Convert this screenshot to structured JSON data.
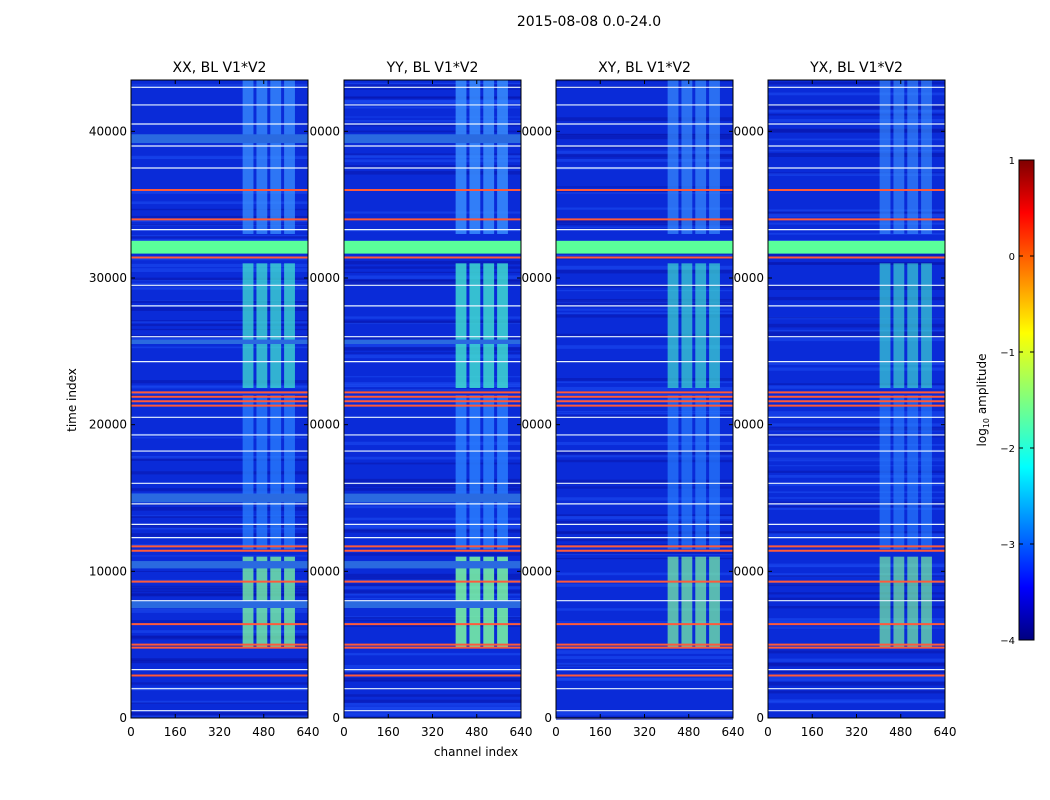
{
  "figure": {
    "suptitle": "2015-08-08 0.0-24.0",
    "xlabel": "channel index",
    "ylabel": "time index"
  },
  "chart_data": {
    "type": "heatmap",
    "x_range": [
      0,
      640
    ],
    "y_range": [
      0,
      43500
    ],
    "x_ticks": [
      0,
      160,
      320,
      480,
      640
    ],
    "y_ticks": [
      0,
      10000,
      20000,
      30000,
      40000
    ],
    "x_tick_labels": [
      "0",
      "160",
      "320",
      "480",
      "640"
    ],
    "y_tick_labels": [
      "0",
      "10000",
      "20000",
      "30000",
      "40000"
    ],
    "y_tick_labels_clipped": [
      "0",
      "0000",
      "0000",
      "0000",
      "0000"
    ],
    "panels": [
      {
        "title": "XX, BL V1*V2",
        "bright_band": [
          400,
          600
        ],
        "band_strength": 1.0
      },
      {
        "title": "YY, BL V1*V2",
        "bright_band": [
          400,
          600
        ],
        "band_strength": 1.1
      },
      {
        "title": "XY, BL V1*V2",
        "bright_band": [
          400,
          600
        ],
        "band_strength": 0.9
      },
      {
        "title": "YX, BL V1*V2",
        "bright_band": [
          400,
          600
        ],
        "band_strength": 0.85
      }
    ],
    "flagged_rows_red": [
      2900,
      4800,
      5000,
      6400,
      9300,
      11400,
      11700,
      21300,
      21600,
      21900,
      22200,
      31400,
      34000,
      36000
    ],
    "flagged_rows_white": [
      500,
      2000,
      3300,
      8000,
      12300,
      13200,
      14600,
      16000,
      18200,
      19300,
      20500,
      24300,
      26000,
      28100,
      29500,
      33300,
      37500,
      39000,
      40500,
      41800,
      43000
    ],
    "bright_rows_green": [
      31800,
      32000,
      32200,
      32400
    ],
    "colorbar": {
      "label": "log10 amplitude",
      "label_prefix": "log",
      "label_sub": "10",
      "label_suffix": " amplitude",
      "range": [
        -4,
        1
      ],
      "ticks": [
        1,
        0,
        -1,
        -2,
        -3,
        -4
      ],
      "tick_labels": [
        "1",
        "0",
        "−1",
        "−2",
        "−3",
        "−4"
      ],
      "colormap": "jet"
    }
  }
}
